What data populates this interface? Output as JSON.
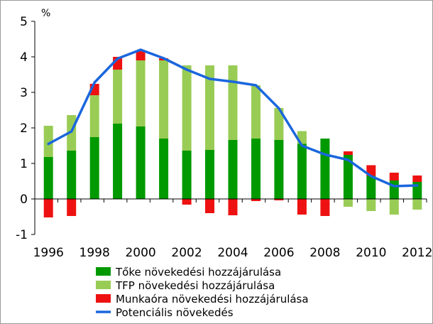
{
  "chart_data": {
    "type": "bar",
    "stacked": true,
    "unit_label": "%",
    "x": [
      "1996",
      "1997",
      "1998",
      "1999",
      "2000",
      "2001",
      "2002",
      "2003",
      "2004",
      "2005",
      "2006",
      "2007",
      "2008",
      "2009",
      "2010",
      "2011",
      "2012"
    ],
    "x_tick_labels": [
      "1996",
      "1998",
      "2000",
      "2002",
      "2004",
      "2006",
      "2008",
      "2010",
      "2012"
    ],
    "ylim": [
      -1,
      5
    ],
    "y_ticks": [
      -1,
      0,
      1,
      2,
      3,
      4,
      5
    ],
    "grid": false,
    "legend_position": "bottom",
    "series": [
      {
        "name": "Tőke növekedési hozzájárulása",
        "kind": "bar",
        "color": "#009900",
        "values": [
          1.18,
          1.36,
          1.74,
          2.12,
          2.04,
          1.7,
          1.36,
          1.38,
          1.66,
          1.7,
          1.66,
          1.55,
          1.7,
          1.24,
          0.65,
          0.52,
          0.48
        ]
      },
      {
        "name": "TFP növekedési hozzájárulása",
        "kind": "bar",
        "color": "#99cc55",
        "values": [
          0.88,
          1.0,
          1.18,
          1.52,
          1.86,
          2.2,
          2.4,
          2.38,
          2.1,
          1.5,
          0.9,
          0.36,
          0.0,
          -0.22,
          -0.34,
          -0.44,
          -0.3
        ]
      },
      {
        "name": "Munkaóra növekedési hozzájárulása",
        "kind": "bar",
        "color": "#ee1111",
        "values": [
          -0.52,
          -0.48,
          0.32,
          0.36,
          0.26,
          0.06,
          -0.16,
          -0.4,
          -0.46,
          -0.06,
          -0.04,
          -0.44,
          -0.48,
          0.1,
          0.3,
          0.22,
          0.18
        ]
      },
      {
        "name": "Potenciális növekedés",
        "kind": "line",
        "color": "#1a66dd",
        "values": [
          1.55,
          1.9,
          3.28,
          3.95,
          4.2,
          3.96,
          3.64,
          3.38,
          3.3,
          3.2,
          2.55,
          1.5,
          1.25,
          1.1,
          0.64,
          0.36,
          0.38
        ]
      }
    ]
  }
}
